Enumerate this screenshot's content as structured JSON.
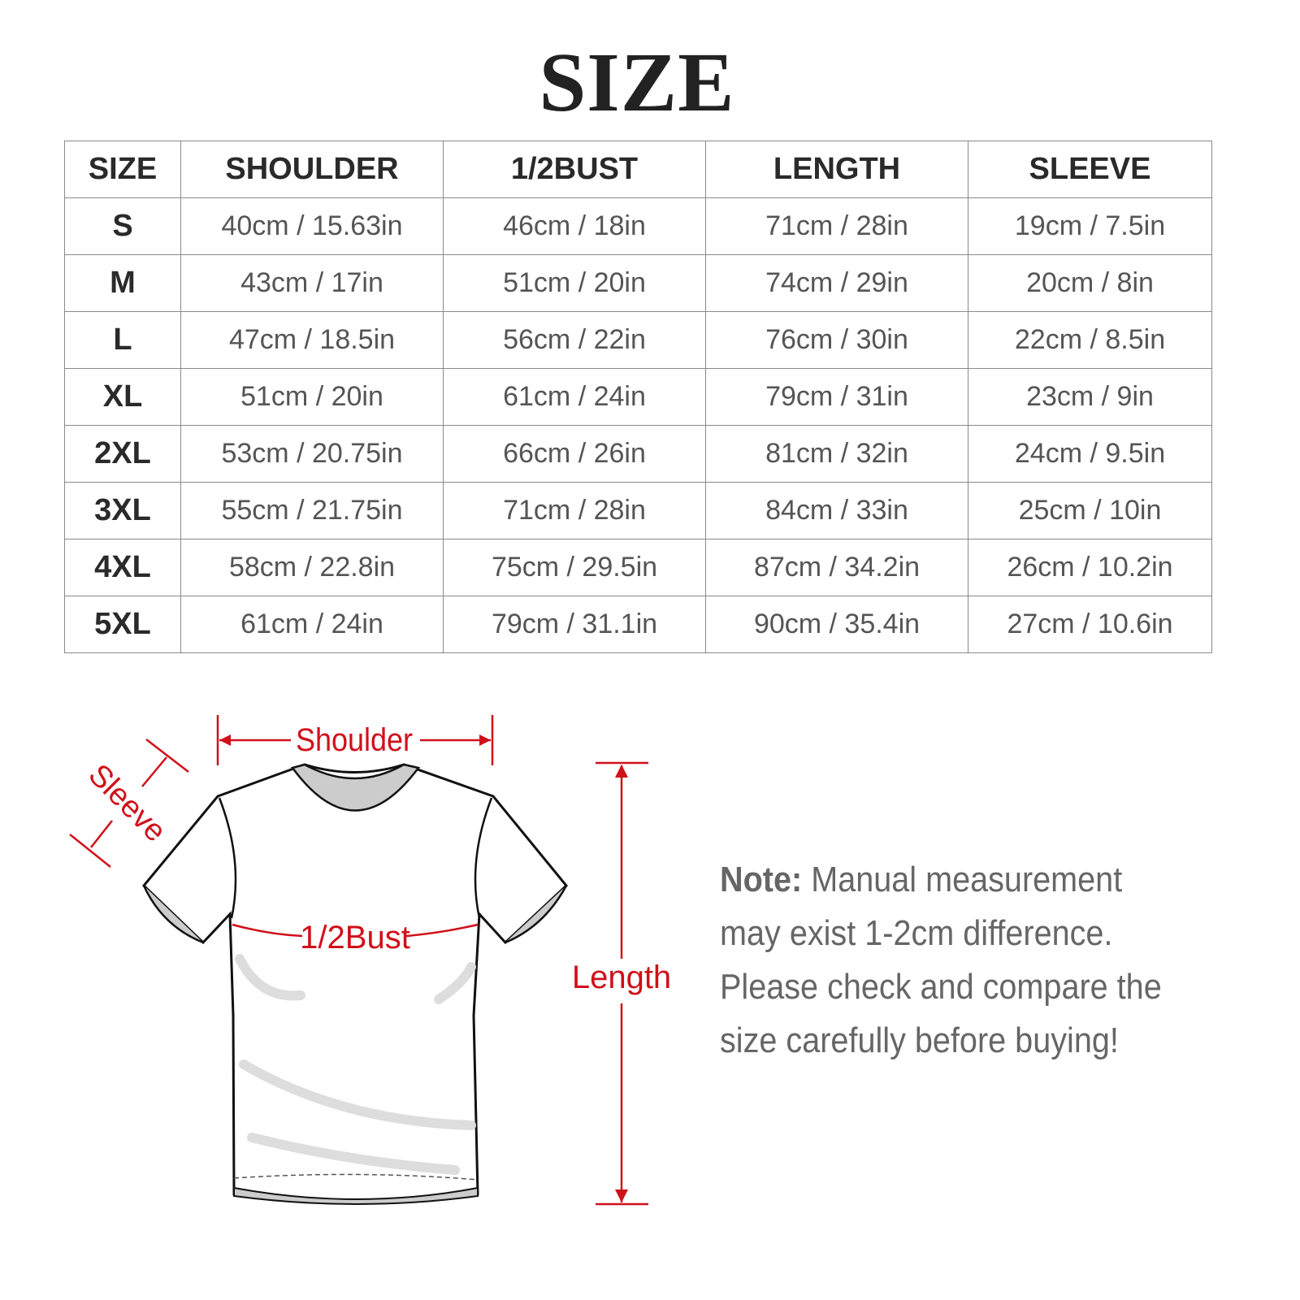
{
  "title": "SIZE",
  "table": {
    "headers": [
      "SIZE",
      "SHOULDER",
      "1/2BUST",
      "LENGTH",
      "SLEEVE"
    ],
    "rows": [
      [
        "S",
        "40cm / 15.63in",
        "46cm / 18in",
        "71cm / 28in",
        "19cm / 7.5in"
      ],
      [
        "M",
        "43cm / 17in",
        "51cm / 20in",
        "74cm / 29in",
        "20cm / 8in"
      ],
      [
        "L",
        "47cm / 18.5in",
        "56cm / 22in",
        "76cm / 30in",
        "22cm / 8.5in"
      ],
      [
        "XL",
        "51cm / 20in",
        "61cm / 24in",
        "79cm / 31in",
        "23cm / 9in"
      ],
      [
        "2XL",
        "53cm / 20.75in",
        "66cm / 26in",
        "81cm / 32in",
        "24cm / 9.5in"
      ],
      [
        "3XL",
        "55cm / 21.75in",
        "71cm / 28in",
        "84cm / 33in",
        "25cm / 10in"
      ],
      [
        "4XL",
        "58cm / 22.8in",
        "75cm / 29.5in",
        "87cm / 34.2in",
        "26cm / 10.2in"
      ],
      [
        "5XL",
        "61cm / 24in",
        "79cm / 31.1in",
        "90cm / 35.4in",
        "27cm / 10.6in"
      ]
    ]
  },
  "diagram": {
    "shoulder_label": "Shoulder",
    "sleeve_label": "Sleeve",
    "bust_label": "1/2Bust",
    "length_label": "Length",
    "accent_color": "#d0101a"
  },
  "note": {
    "label": "Note:",
    "text": "Manual measurement may exist 1-2cm difference. Please check and compare the size carefully before buying!"
  }
}
